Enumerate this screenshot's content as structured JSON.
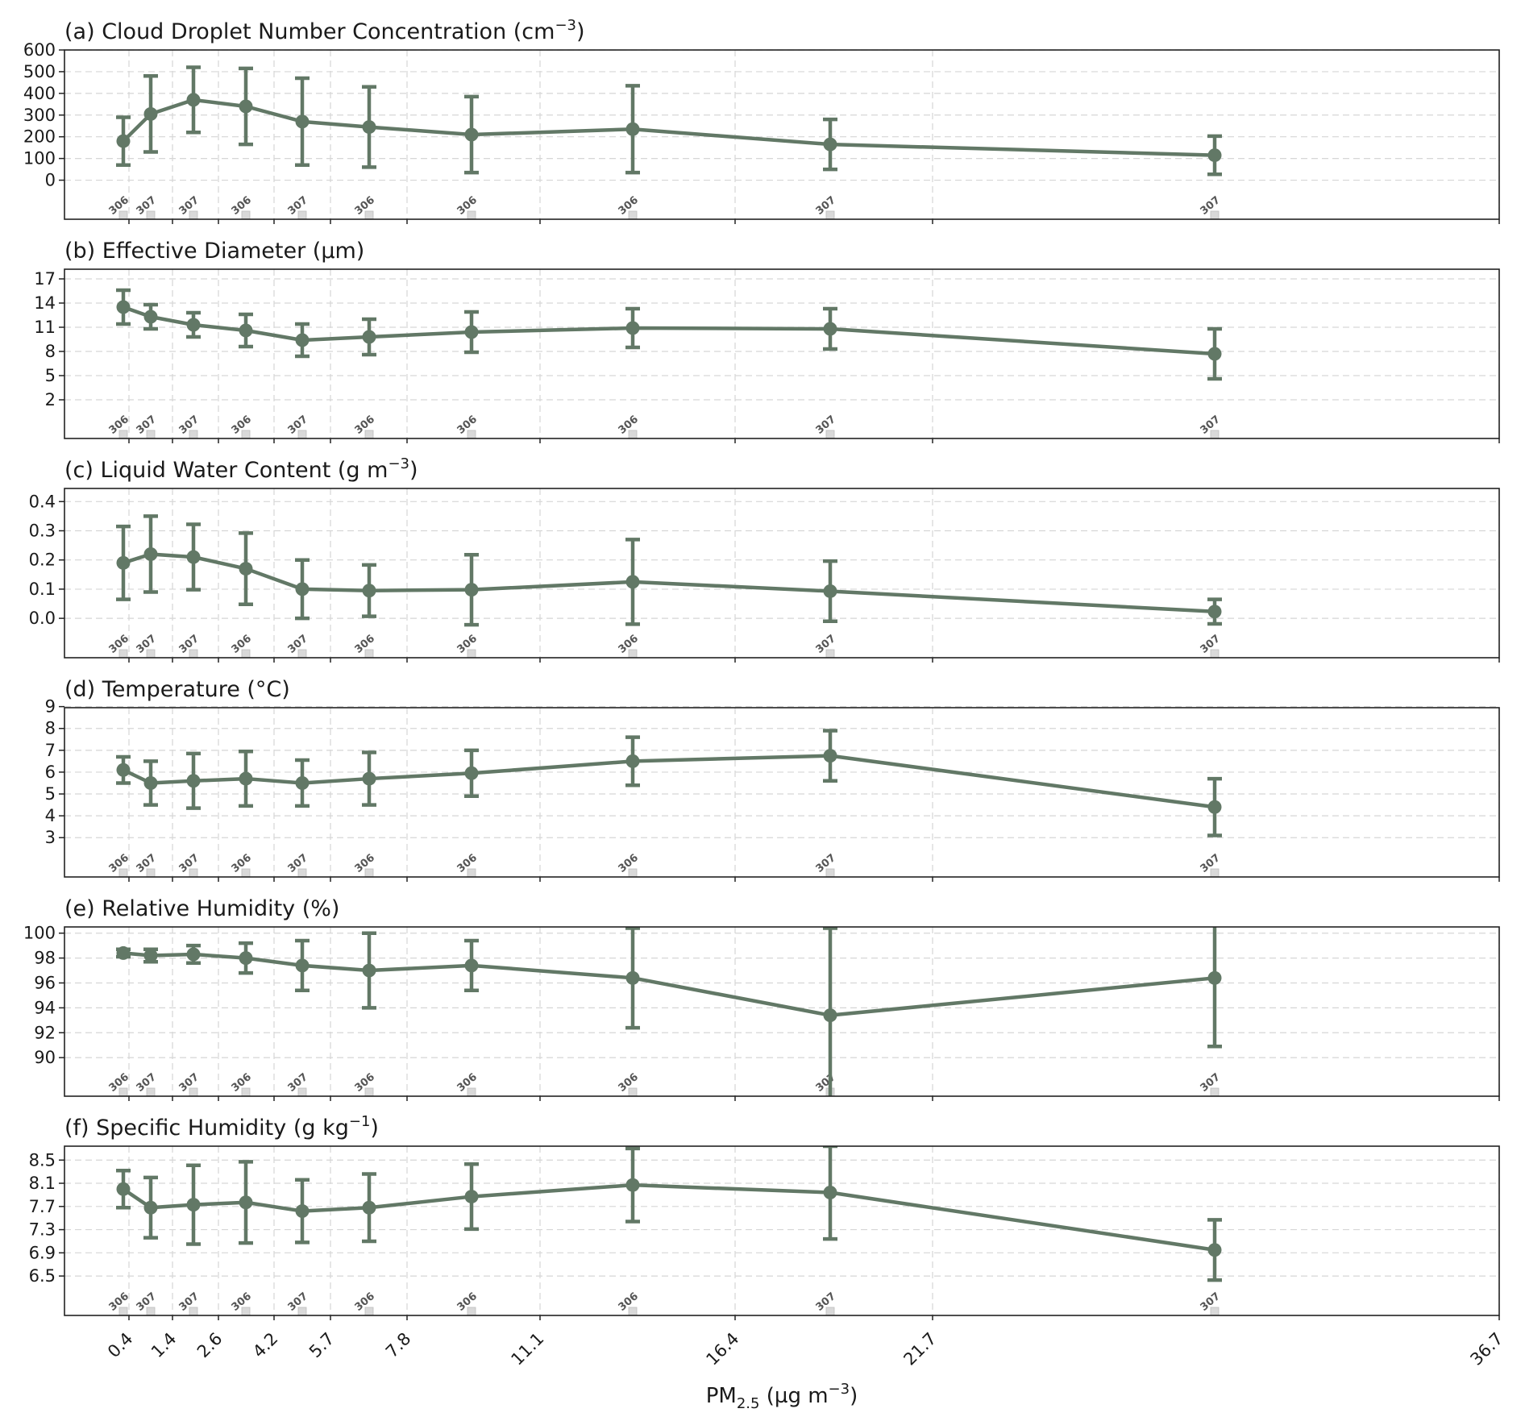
{
  "chart_data": {
    "type": "line",
    "xlabel": "PM2.5 (µg m−3)",
    "xlabel_parts": {
      "main": "PM",
      "sub": "2.5",
      "unit_open": " (µg m",
      "sup": "−3",
      "unit_close": ")"
    },
    "x_tick_labels": [
      "0.4",
      "1.4",
      "2.6",
      "4.2",
      "5.7",
      "7.8",
      "11.1",
      "16.4",
      "21.7",
      "36.7"
    ],
    "x_positions": [
      0,
      1,
      2,
      3,
      4,
      5,
      6,
      7,
      8,
      9
    ],
    "sample_counts": [
      "306",
      "307",
      "307",
      "306",
      "307",
      "306",
      "306",
      "306",
      "307",
      "307"
    ],
    "color": "#627866",
    "count_marker_color": "#d9d9d9",
    "grid": true,
    "panels": [
      {
        "title": "(a) Cloud Droplet Number Concentration (cm−3)",
        "title_main": "(a) Cloud Droplet Number Concentration (cm",
        "title_sup": "−3",
        "title_end": ")",
        "yticks": [
          0,
          100,
          200,
          300,
          400,
          500,
          600
        ],
        "ytick_labels": [
          "0",
          "100",
          "200",
          "300",
          "400",
          "500",
          "600"
        ],
        "ylim": [
          -180,
          600
        ],
        "mean": [
          180,
          305,
          370,
          340,
          270,
          245,
          210,
          235,
          165,
          115
        ],
        "err": [
          110,
          175,
          150,
          175,
          200,
          185,
          175,
          200,
          115,
          88
        ]
      },
      {
        "title": "(b) Effective Diameter (µm)",
        "title_main": "(b) Effective Diameter (µm)",
        "title_sup": "",
        "title_end": "",
        "yticks": [
          2,
          5,
          8,
          11,
          14,
          17
        ],
        "ytick_labels": [
          "2",
          "5",
          "8",
          "11",
          "14",
          "17"
        ],
        "ylim": [
          -2.8,
          18.2
        ],
        "mean": [
          13.5,
          12.3,
          11.3,
          10.6,
          9.4,
          9.8,
          10.4,
          10.9,
          10.8,
          7.7
        ],
        "err": [
          2.1,
          1.5,
          1.5,
          2.0,
          2.0,
          2.2,
          2.5,
          2.4,
          2.5,
          3.1
        ]
      },
      {
        "title": "(c) Liquid Water Content (g m−3)",
        "title_main": "(c) Liquid Water Content (g m",
        "title_sup": "−3",
        "title_end": ")",
        "yticks": [
          0.0,
          0.1,
          0.2,
          0.3,
          0.4
        ],
        "ytick_labels": [
          "0.0",
          "0.1",
          "0.2",
          "0.3",
          "0.4"
        ],
        "ylim": [
          -0.135,
          0.445
        ],
        "mean": [
          0.19,
          0.22,
          0.21,
          0.17,
          0.1,
          0.095,
          0.098,
          0.125,
          0.093,
          0.023
        ],
        "err": [
          0.125,
          0.13,
          0.112,
          0.122,
          0.1,
          0.088,
          0.12,
          0.145,
          0.103,
          0.042
        ]
      },
      {
        "title": "(d) Temperature (°C)",
        "title_main": "(d) Temperature (°C)",
        "title_sup": "",
        "title_end": "",
        "yticks": [
          3,
          4,
          5,
          6,
          7,
          8,
          9
        ],
        "ytick_labels": [
          "3",
          "4",
          "5",
          "6",
          "7",
          "8",
          "9"
        ],
        "ylim": [
          1.2,
          8.95
        ],
        "mean": [
          6.1,
          5.5,
          5.6,
          5.7,
          5.5,
          5.7,
          5.95,
          6.5,
          6.75,
          4.4
        ],
        "err": [
          0.6,
          1.0,
          1.25,
          1.25,
          1.05,
          1.2,
          1.05,
          1.1,
          1.15,
          1.3
        ]
      },
      {
        "title": "(e) Relative Humidity (%)",
        "title_main": "(e) Relative Humidity (%)",
        "title_sup": "",
        "title_end": "",
        "yticks": [
          90,
          92,
          94,
          96,
          98,
          100
        ],
        "ytick_labels": [
          "90",
          "92",
          "94",
          "96",
          "98",
          "100"
        ],
        "ylim": [
          86.9,
          100.5
        ],
        "mean": [
          98.4,
          98.2,
          98.3,
          98.0,
          97.4,
          97.0,
          97.4,
          96.4,
          93.4,
          96.4
        ],
        "err": [
          0.3,
          0.5,
          0.7,
          1.2,
          2.0,
          3.0,
          2.0,
          4.0,
          7.0,
          5.5
        ]
      },
      {
        "title": "(f) Specific Humidity (g kg−1)",
        "title_main": "(f) Specific Humidity (g kg",
        "title_sup": "−1",
        "title_end": ")",
        "yticks": [
          6.5,
          6.9,
          7.3,
          7.7,
          8.1,
          8.5
        ],
        "ytick_labels": [
          "6.5",
          "6.9",
          "7.3",
          "7.7",
          "8.1",
          "8.5"
        ],
        "ylim": [
          5.82,
          8.74
        ],
        "mean": [
          8.0,
          7.68,
          7.73,
          7.77,
          7.62,
          7.68,
          7.87,
          8.07,
          7.94,
          6.95
        ],
        "err": [
          0.32,
          0.52,
          0.68,
          0.7,
          0.54,
          0.58,
          0.56,
          0.63,
          0.8,
          0.52
        ]
      }
    ]
  }
}
